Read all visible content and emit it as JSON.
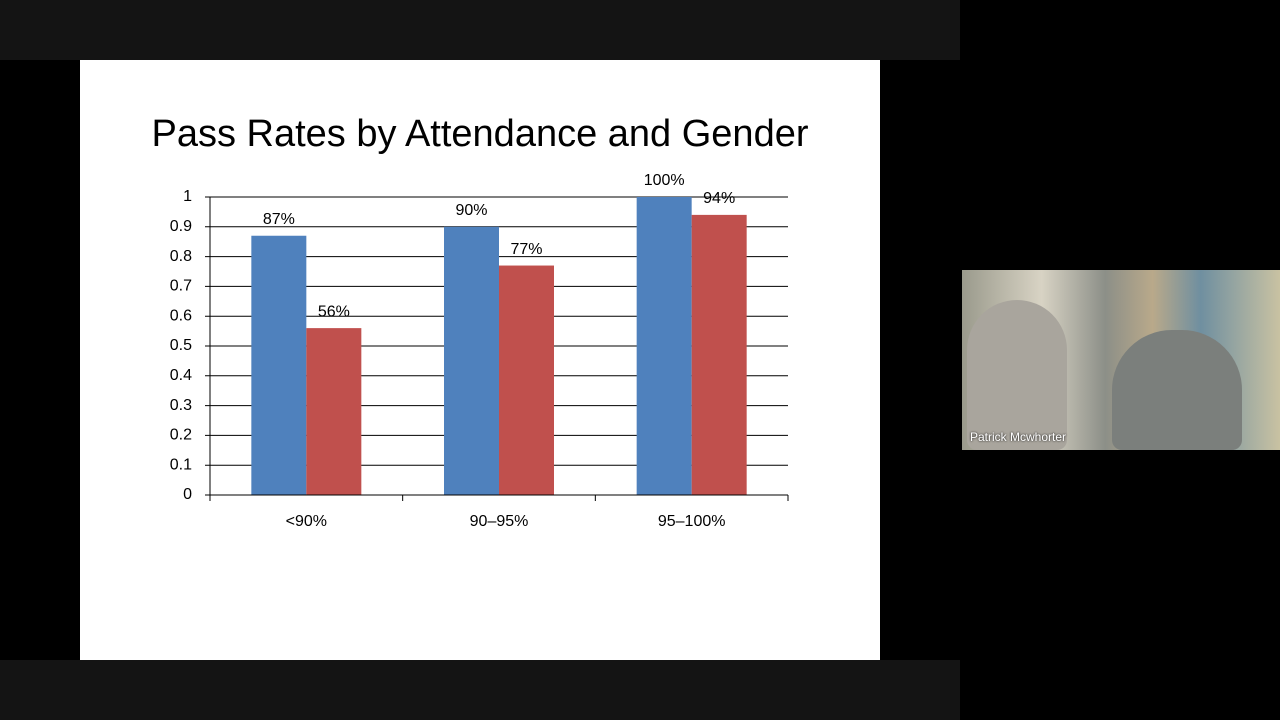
{
  "chart_data": {
    "type": "bar",
    "title": "Pass Rates by Attendance and Gender",
    "categories": [
      "<90%",
      "90–95%",
      "95–100%"
    ],
    "series": [
      {
        "color": "#4f81bd",
        "values": [
          0.87,
          0.9,
          1.0
        ],
        "value_labels": [
          "87%",
          "90%",
          "100%"
        ]
      },
      {
        "color": "#c0504d",
        "values": [
          0.56,
          0.77,
          0.94
        ],
        "value_labels": [
          "56%",
          "77%",
          "94%"
        ]
      }
    ],
    "ylim": [
      0,
      1
    ],
    "yticks": [
      0,
      0.1,
      0.2,
      0.3,
      0.4,
      0.5,
      0.6,
      0.7,
      0.8,
      0.9,
      1
    ],
    "grid": true
  },
  "video": {
    "participant_name": "Patrick Mcwhorter"
  }
}
